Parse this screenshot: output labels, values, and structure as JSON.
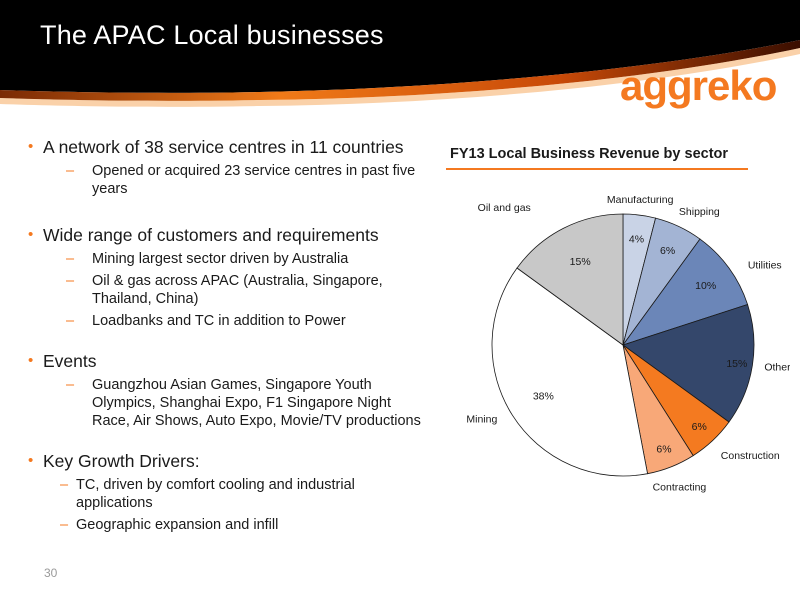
{
  "slide": {
    "title": "The APAC Local businesses",
    "logo_text": "aggreko",
    "page_number": "30"
  },
  "bullets": [
    {
      "text": "A network of 38 service centres in 11 countries",
      "subs": [
        "Opened or acquired 23 service centres in past five years"
      ]
    },
    {
      "text": "Wide range of customers and requirements",
      "subs": [
        "Mining largest sector driven by Australia",
        "Oil & gas across APAC (Australia, Singapore, Thailand, China)",
        "Loadbanks and TC in addition to Power"
      ]
    },
    {
      "text": "Events",
      "subs": [
        "Guangzhou Asian Games, Singapore Youth Olympics, Shanghai Expo, F1 Singapore Night Race, Air Shows, Auto Expo, Movie/TV productions"
      ]
    },
    {
      "text": "Key Growth Drivers:",
      "subs": [
        "TC, driven by comfort cooling and industrial applications",
        "Geographic expansion and infill"
      ]
    }
  ],
  "colors": {
    "accent": "#f47920",
    "banner_dark": "#000000",
    "banner_glow": "#e8600a"
  },
  "chart_data": {
    "type": "pie",
    "title": "FY13 Local Business Revenue by sector",
    "slices": [
      {
        "label": "Manufacturing",
        "value": 4,
        "value_label": "4%",
        "color": "#c9d3e6"
      },
      {
        "label": "Shipping",
        "value": 6,
        "value_label": "6%",
        "color": "#a3b4d4"
      },
      {
        "label": "Utilities",
        "value": 10,
        "value_label": "10%",
        "color": "#6b86b8"
      },
      {
        "label": "Other",
        "value": 15,
        "value_label": "15%",
        "color": "#34476b"
      },
      {
        "label": "Construction",
        "value": 6,
        "value_label": "6%",
        "color": "#f47a20"
      },
      {
        "label": "Contracting",
        "value": 6,
        "value_label": "6%",
        "color": "#f8a878"
      },
      {
        "label": "Mining",
        "value": 38,
        "value_label": "38%",
        "color": "#ffffff"
      },
      {
        "label": "Oil and gas",
        "value": 15,
        "value_label": "15%",
        "color": "#c8c8c8"
      }
    ],
    "start_angle": "12 o'clock, clockwise"
  }
}
